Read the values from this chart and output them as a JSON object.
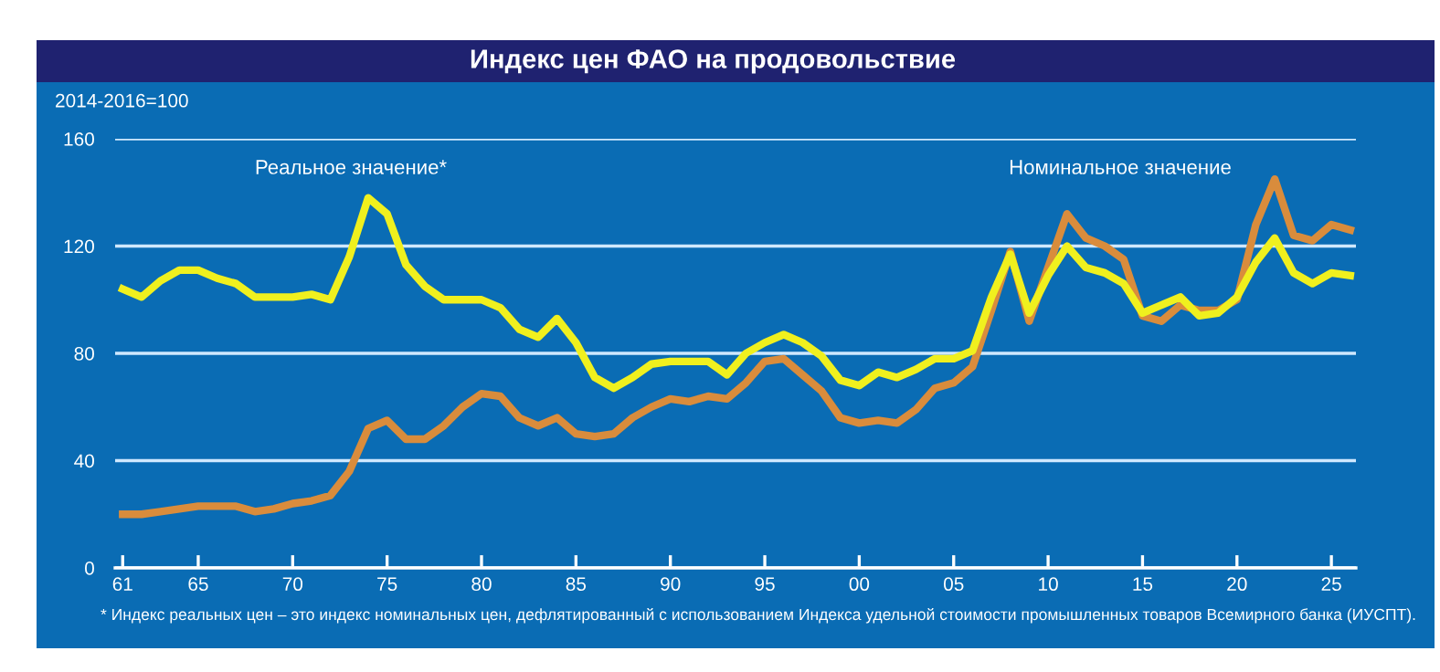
{
  "chart_data": {
    "type": "line",
    "title": "Индекс цен ФАО на продовольствие",
    "ylabel": "2014-2016=100",
    "x": [
      1961,
      1962,
      1963,
      1964,
      1965,
      1966,
      1967,
      1968,
      1969,
      1970,
      1971,
      1972,
      1973,
      1974,
      1975,
      1976,
      1977,
      1978,
      1979,
      1980,
      1981,
      1982,
      1983,
      1984,
      1985,
      1986,
      1987,
      1988,
      1989,
      1990,
      1991,
      1992,
      1993,
      1994,
      1995,
      1996,
      1997,
      1998,
      1999,
      2000,
      2001,
      2002,
      2003,
      2004,
      2005,
      2006,
      2007,
      2008,
      2009,
      2010,
      2011,
      2012,
      2013,
      2014,
      2015,
      2016,
      2017,
      2018,
      2019,
      2020,
      2021,
      2022,
      2023,
      2024,
      2025,
      2026
    ],
    "series": [
      {
        "name": "Номинальное значение",
        "color": "#d98c3c",
        "values": [
          20,
          20,
          21,
          22,
          23,
          23,
          23,
          21,
          22,
          24,
          25,
          27,
          36,
          52,
          55,
          48,
          48,
          53,
          60,
          65,
          64,
          56,
          53,
          56,
          50,
          49,
          50,
          56,
          60,
          63,
          62,
          64,
          63,
          69,
          77,
          78,
          72,
          66,
          56,
          54,
          55,
          54,
          59,
          67,
          69,
          75,
          96,
          118,
          92,
          112,
          132,
          123,
          120,
          115,
          94,
          92,
          98,
          96,
          96,
          100,
          128,
          145,
          124,
          122,
          128,
          126
        ]
      },
      {
        "name": "Реальное значение*",
        "color": "#f0f01e",
        "values": [
          104,
          101,
          107,
          111,
          111,
          108,
          106,
          101,
          101,
          101,
          102,
          100,
          116,
          138,
          132,
          113,
          105,
          100,
          100,
          100,
          97,
          89,
          86,
          93,
          84,
          71,
          67,
          71,
          76,
          77,
          77,
          77,
          72,
          80,
          84,
          87,
          84,
          79,
          70,
          68,
          73,
          71,
          74,
          78,
          78,
          81,
          101,
          117,
          95,
          109,
          120,
          112,
          110,
          106,
          95,
          98,
          101,
          94,
          95,
          101,
          114,
          123,
          110,
          106,
          110,
          109
        ]
      }
    ],
    "xlim": [
      1960.6,
      2026.3
    ],
    "xticks": [
      {
        "value": 1961,
        "label": "61"
      },
      {
        "value": 1965,
        "label": "65"
      },
      {
        "value": 1970,
        "label": "70"
      },
      {
        "value": 1975,
        "label": "75"
      },
      {
        "value": 1980,
        "label": "80"
      },
      {
        "value": 1985,
        "label": "85"
      },
      {
        "value": 1990,
        "label": "90"
      },
      {
        "value": 1995,
        "label": "95"
      },
      {
        "value": 2000,
        "label": "00"
      },
      {
        "value": 2005,
        "label": "05"
      },
      {
        "value": 2010,
        "label": "10"
      },
      {
        "value": 2015,
        "label": "15"
      },
      {
        "value": 2020,
        "label": "20"
      },
      {
        "value": 2025,
        "label": "25"
      }
    ],
    "ylim": [
      0,
      160
    ],
    "yticks": [
      0,
      40,
      80,
      120,
      160
    ],
    "grid": "y",
    "legend": false,
    "line_style": "solid",
    "marker": "none",
    "annotations": [
      "* Индекс реальных цен – это индекс номинальных цен, дефлятированный с использованием Индекса удельной стоимости промышленных товаров Всемирного банка (ИУСПТ)."
    ]
  }
}
